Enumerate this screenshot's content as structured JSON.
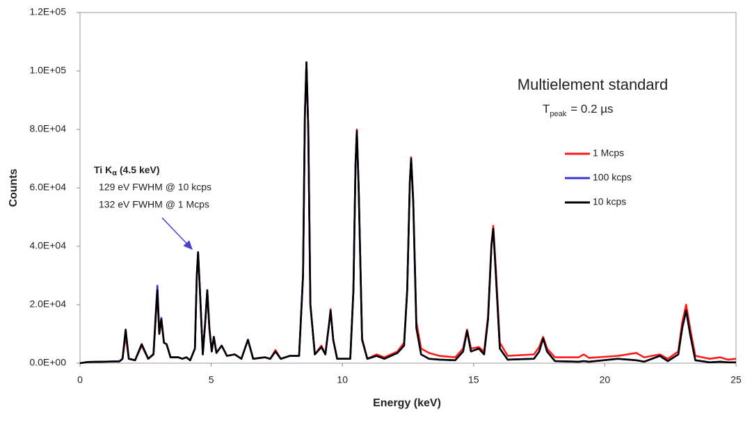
{
  "chart_data": {
    "type": "line",
    "title": "Multielement standard",
    "subtitle": {
      "main": "T",
      "sub": "peak",
      "rest": "= 0.2 µs"
    },
    "annotation": {
      "main": "Ti K",
      "sub": "α",
      "rest": "(4.5 keV)",
      "lines": [
        "129 eV FWHM @ 10 kcps",
        "132 eV FWHM @ 1 Mcps"
      ]
    },
    "xlabel": "Energy (keV)",
    "ylabel": "Counts",
    "xlim": [
      0,
      25
    ],
    "ylim": [
      0,
      120000
    ],
    "xticks": [
      0,
      5,
      10,
      15,
      20,
      25
    ],
    "yticks": [
      {
        "value": 0,
        "label": "0.0E+00"
      },
      {
        "value": 20000,
        "label": "2.0E+04"
      },
      {
        "value": 40000,
        "label": "4.0E+04"
      },
      {
        "value": 60000,
        "label": "6.0E+04"
      },
      {
        "value": 80000,
        "label": "8.0E+04"
      },
      {
        "value": 100000,
        "label": "1.0E+05"
      },
      {
        "value": 120000,
        "label": "1.2E+05"
      }
    ],
    "grid": false,
    "x": [
      0,
      0.3,
      1.5,
      1.62,
      1.74,
      1.86,
      2.1,
      2.35,
      2.6,
      2.8,
      2.9,
      2.95,
      3.02,
      3.1,
      3.2,
      3.3,
      3.45,
      3.75,
      3.9,
      4.05,
      4.2,
      4.38,
      4.45,
      4.5,
      4.57,
      4.68,
      4.78,
      4.85,
      4.93,
      5.02,
      5.1,
      5.2,
      5.4,
      5.6,
      5.9,
      6.15,
      6.4,
      6.6,
      7.05,
      7.25,
      7.45,
      7.65,
      8.0,
      8.35,
      8.5,
      8.57,
      8.63,
      8.7,
      8.78,
      8.95,
      9.2,
      9.35,
      9.5,
      9.55,
      9.65,
      9.8,
      10.3,
      10.42,
      10.5,
      10.55,
      10.62,
      10.75,
      10.95,
      11.3,
      11.6,
      12.1,
      12.35,
      12.47,
      12.57,
      12.62,
      12.7,
      12.82,
      13.0,
      13.3,
      13.7,
      14.3,
      14.6,
      14.75,
      14.9,
      15.2,
      15.4,
      15.55,
      15.68,
      15.75,
      15.85,
      16.0,
      16.3,
      17.3,
      17.5,
      17.65,
      17.8,
      18.1,
      19.0,
      19.2,
      19.4,
      20.5,
      21.2,
      21.5,
      22.1,
      22.4,
      22.8,
      22.95,
      23.1,
      23.25,
      23.45,
      24.0,
      24.4,
      24.7,
      25.0
    ],
    "series": [
      {
        "name": "1 Mcps",
        "color": "#ff1a1a",
        "values": [
          0,
          400,
          600,
          1500,
          9500,
          1500,
          1000,
          6000,
          1500,
          3000,
          17500,
          24500,
          10000,
          14500,
          7000,
          6500,
          2000,
          2000,
          1500,
          2000,
          1000,
          5000,
          29500,
          37500,
          25000,
          3000,
          15000,
          24500,
          12000,
          4000,
          9000,
          3500,
          6000,
          2500,
          3000,
          1500,
          8000,
          1500,
          2000,
          1500,
          4500,
          1500,
          2500,
          2500,
          30000,
          84000,
          102500,
          80000,
          20000,
          3000,
          6000,
          3000,
          14000,
          18500,
          8000,
          1500,
          1500,
          25000,
          68000,
          80000,
          60000,
          8500,
          1500,
          3000,
          2000,
          4000,
          7000,
          25000,
          62000,
          70500,
          56000,
          14000,
          5000,
          3500,
          2500,
          2000,
          5000,
          11500,
          5000,
          5500,
          4000,
          16000,
          41000,
          47000,
          32000,
          7000,
          2500,
          3000,
          5500,
          9000,
          5000,
          2000,
          2000,
          3000,
          1800,
          2500,
          3500,
          2000,
          3000,
          1500,
          4000,
          14000,
          20000,
          12000,
          2500,
          1500,
          2000,
          1200,
          1500
        ]
      },
      {
        "name": "100 kcps",
        "color": "#3d2fd6",
        "values": [
          0,
          400,
          600,
          1500,
          11000,
          1500,
          1000,
          6500,
          1500,
          3200,
          19500,
          26500,
          11000,
          15500,
          7000,
          6500,
          2000,
          2000,
          1500,
          2000,
          1000,
          5000,
          30000,
          38000,
          25000,
          3000,
          15000,
          25000,
          12000,
          4000,
          9000,
          3500,
          6000,
          2500,
          3000,
          1500,
          8000,
          1500,
          2000,
          1500,
          4000,
          1500,
          2500,
          2500,
          30000,
          85000,
          103000,
          80000,
          20000,
          3000,
          5500,
          3000,
          14000,
          18000,
          8000,
          1500,
          1500,
          25000,
          68000,
          79500,
          60000,
          8000,
          1500,
          2500,
          1500,
          3500,
          6000,
          25000,
          62000,
          70000,
          55000,
          12000,
          3000,
          1500,
          1200,
          1000,
          4000,
          11000,
          4000,
          5000,
          3000,
          15000,
          40000,
          46000,
          30000,
          5000,
          1200,
          1500,
          4000,
          8500,
          4000,
          700,
          500,
          700,
          500,
          1500,
          1000,
          500,
          2500,
          700,
          3000,
          12000,
          18000,
          10000,
          1000,
          300,
          500,
          300,
          300
        ]
      },
      {
        "name": "10 kcps",
        "color": "#000000",
        "values": [
          0,
          400,
          600,
          1500,
          11500,
          1500,
          1000,
          6500,
          1500,
          3000,
          18000,
          25000,
          10000,
          15000,
          7000,
          6500,
          2000,
          2000,
          1500,
          2000,
          1000,
          5000,
          30000,
          38000,
          25000,
          3000,
          15000,
          25000,
          12000,
          4000,
          9000,
          3500,
          6000,
          2500,
          3000,
          1500,
          8000,
          1500,
          2000,
          1500,
          4000,
          1500,
          2500,
          2500,
          30000,
          85000,
          103000,
          80000,
          20000,
          3000,
          5500,
          3000,
          14000,
          18000,
          8000,
          1500,
          1500,
          25000,
          68000,
          79500,
          60000,
          8000,
          1500,
          2500,
          1500,
          3500,
          6000,
          25000,
          62000,
          70000,
          55000,
          12000,
          3000,
          1500,
          1200,
          1000,
          4000,
          11000,
          4000,
          5000,
          3000,
          15000,
          40000,
          46000,
          30000,
          5000,
          1200,
          1500,
          4000,
          8500,
          4000,
          700,
          500,
          700,
          500,
          1500,
          1000,
          500,
          2500,
          700,
          3000,
          12000,
          18000,
          10000,
          1000,
          300,
          500,
          300,
          300
        ]
      }
    ]
  }
}
